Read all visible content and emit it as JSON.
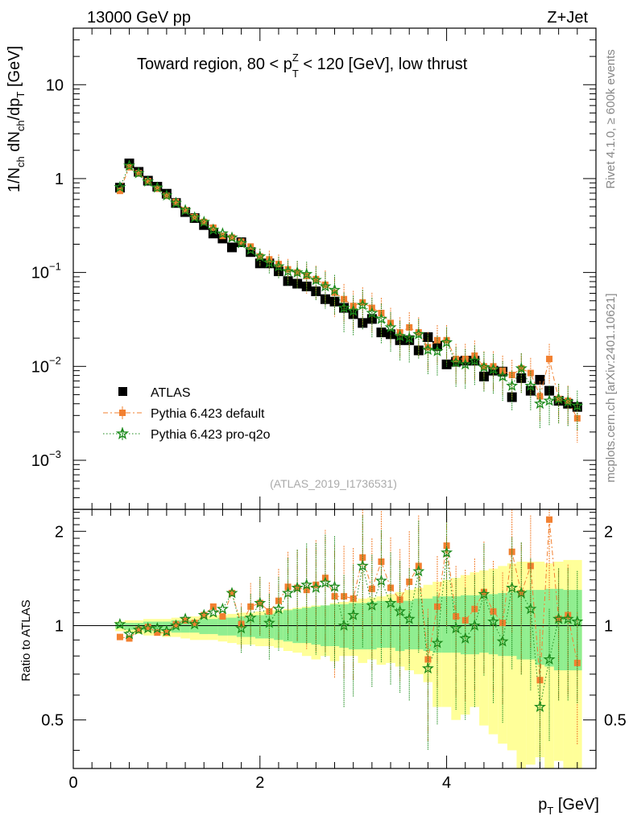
{
  "header": {
    "left": "13000 GeV pp",
    "right": "Z+Jet"
  },
  "side": {
    "rivet": "Rivet 4.1.0, ≥ 600k events",
    "mcplots": "mcplots.cern.ch [arXiv:2401.10621]"
  },
  "chart_data": [
    {
      "type": "scatter",
      "title": "Toward region, 80 < p_T^Z < 120 [GeV], low thrust",
      "title_parts": {
        "pre": "Toward region, 80 < p",
        "sup": "Z",
        "sub": "T",
        "post": " < 120 [GeV], low thrust"
      },
      "ylabel": "1/N_ch dN_ch/dp_T [GeV]",
      "yscale": "log",
      "ylim": [
        0.0003,
        40
      ],
      "xlim": [
        0,
        5.6
      ],
      "y_ticks": [
        {
          "value": 10,
          "label": "10"
        },
        {
          "value": 1,
          "label": "1"
        },
        {
          "value": 0.1,
          "base": "10",
          "exp": "−1"
        },
        {
          "value": 0.01,
          "base": "10",
          "exp": "−2"
        },
        {
          "value": 0.001,
          "base": "10",
          "exp": "−3"
        }
      ],
      "watermark": "(ATLAS_2019_I1736531)",
      "x": [
        0.5,
        0.6,
        0.7,
        0.8,
        0.9,
        1.0,
        1.1,
        1.2,
        1.3,
        1.4,
        1.5,
        1.6,
        1.7,
        1.8,
        1.9,
        2.0,
        2.1,
        2.2,
        2.3,
        2.4,
        2.5,
        2.6,
        2.7,
        2.8,
        2.9,
        3.0,
        3.1,
        3.2,
        3.3,
        3.4,
        3.5,
        3.6,
        3.7,
        3.8,
        3.9,
        4.0,
        4.1,
        4.2,
        4.3,
        4.4,
        4.5,
        4.6,
        4.7,
        4.8,
        4.9,
        5.0,
        5.1,
        5.2,
        5.3,
        5.4
      ],
      "series": [
        {
          "name": "ATLAS",
          "color": "#000000",
          "marker": "square",
          "values": [
            0.8,
            1.45,
            1.18,
            0.95,
            0.82,
            0.69,
            0.55,
            0.44,
            0.38,
            0.32,
            0.26,
            0.23,
            0.185,
            0.21,
            0.165,
            0.125,
            0.125,
            0.103,
            0.081,
            0.076,
            0.071,
            0.063,
            0.052,
            0.049,
            0.042,
            0.036,
            0.029,
            0.032,
            0.023,
            0.022,
            0.019,
            0.019,
            0.0148,
            0.0205,
            0.0165,
            0.0105,
            0.0112,
            0.0115,
            0.0115,
            0.0078,
            0.009,
            0.0088,
            0.0047,
            0.0075,
            0.0055,
            0.0072,
            0.0055,
            0.0043,
            0.004,
            0.0037
          ]
        },
        {
          "name": "Pythia 6.423 default",
          "color": "#f28030",
          "marker": "square-small",
          "values": [
            0.74,
            1.32,
            1.14,
            0.94,
            0.78,
            0.655,
            0.565,
            0.46,
            0.39,
            0.345,
            0.3,
            0.245,
            0.235,
            0.213,
            0.189,
            0.148,
            0.138,
            0.123,
            0.108,
            0.1,
            0.092,
            0.085,
            0.074,
            0.061,
            0.052,
            0.044,
            0.048,
            0.042,
            0.037,
            0.029,
            0.023,
            0.026,
            0.023,
            0.016,
            0.019,
            0.019,
            0.012,
            0.012,
            0.013,
            0.01,
            0.01,
            0.009,
            0.0081,
            0.0095,
            0.0085,
            0.0048,
            0.012,
            0.0045,
            0.0043,
            0.0028
          ]
        },
        {
          "name": "Pythia 6.423 pro-q2o",
          "color": "#1a8a1a",
          "marker": "star",
          "values": [
            0.81,
            1.37,
            1.14,
            0.93,
            0.8,
            0.66,
            0.55,
            0.46,
            0.385,
            0.345,
            0.285,
            0.26,
            0.235,
            0.205,
            0.175,
            0.148,
            0.127,
            0.116,
            0.103,
            0.1,
            0.096,
            0.083,
            0.071,
            0.065,
            0.042,
            0.039,
            0.045,
            0.037,
            0.032,
            0.026,
            0.021,
            0.02,
            0.022,
            0.015,
            0.0145,
            0.018,
            0.011,
            0.0105,
            0.0115,
            0.0098,
            0.0093,
            0.0078,
            0.0062,
            0.0095,
            0.0062,
            0.004,
            0.0043,
            0.0045,
            0.0042,
            0.0038
          ]
        }
      ],
      "legend": {
        "placement": "bottom-left",
        "entries": [
          "ATLAS",
          "Pythia 6.423 default",
          "Pythia 6.423 pro-q2o"
        ]
      }
    },
    {
      "type": "scatter",
      "ylabel": "Ratio to ATLAS",
      "xlabel": "p_T [GeV]",
      "xlabel_parts": {
        "pre": "p",
        "sub": "T",
        "post": " [GeV]"
      },
      "yscale": "log",
      "ylim": [
        0.35,
        2.35
      ],
      "xlim": [
        0,
        5.6
      ],
      "x_ticks": [
        {
          "value": 0,
          "label": "0"
        },
        {
          "value": 2,
          "label": "2"
        },
        {
          "value": 4,
          "label": "4"
        }
      ],
      "y_ticks": [
        {
          "value": 0.5,
          "label": "0.5"
        },
        {
          "value": 1,
          "label": "1"
        },
        {
          "value": 2,
          "label": "2"
        }
      ],
      "band_colors": {
        "inner": "#90ee90",
        "outer": "#ffff99"
      },
      "bands": {
        "outer_lo": [
          0.96,
          0.95,
          0.94,
          0.93,
          0.93,
          0.92,
          0.92,
          0.91,
          0.9,
          0.9,
          0.9,
          0.89,
          0.88,
          0.87,
          0.87,
          0.86,
          0.86,
          0.85,
          0.83,
          0.82,
          0.8,
          0.78,
          0.8,
          0.77,
          0.8,
          0.8,
          0.76,
          0.78,
          0.75,
          0.76,
          0.74,
          0.72,
          0.7,
          0.66,
          0.55,
          0.55,
          0.5,
          0.52,
          0.55,
          0.48,
          0.45,
          0.42,
          0.4,
          0.35,
          0.36,
          0.38,
          0.35,
          0.37,
          0.35,
          0.35
        ],
        "outer_hi": [
          1.03,
          1.04,
          1.04,
          1.05,
          1.05,
          1.05,
          1.06,
          1.06,
          1.07,
          1.08,
          1.08,
          1.08,
          1.09,
          1.1,
          1.1,
          1.11,
          1.12,
          1.12,
          1.13,
          1.14,
          1.15,
          1.16,
          1.16,
          1.18,
          1.19,
          1.2,
          1.22,
          1.23,
          1.24,
          1.26,
          1.28,
          1.3,
          1.32,
          1.35,
          1.38,
          1.4,
          1.42,
          1.45,
          1.48,
          1.5,
          1.52,
          1.55,
          1.58,
          1.6,
          1.6,
          1.6,
          1.58,
          1.6,
          1.62,
          1.62
        ],
        "inner_lo": [
          0.98,
          0.97,
          0.97,
          0.96,
          0.96,
          0.96,
          0.95,
          0.95,
          0.95,
          0.94,
          0.94,
          0.93,
          0.93,
          0.92,
          0.92,
          0.91,
          0.91,
          0.9,
          0.89,
          0.88,
          0.88,
          0.87,
          0.86,
          0.86,
          0.85,
          0.84,
          0.84,
          0.84,
          0.85,
          0.85,
          0.83,
          0.84,
          0.84,
          0.83,
          0.82,
          0.82,
          0.82,
          0.81,
          0.81,
          0.82,
          0.81,
          0.8,
          0.8,
          0.78,
          0.78,
          0.75,
          0.74,
          0.72,
          0.72,
          0.72
        ],
        "inner_hi": [
          1.02,
          1.02,
          1.02,
          1.03,
          1.03,
          1.03,
          1.04,
          1.04,
          1.04,
          1.05,
          1.05,
          1.06,
          1.06,
          1.07,
          1.07,
          1.08,
          1.09,
          1.1,
          1.12,
          1.13,
          1.14,
          1.15,
          1.16,
          1.17,
          1.17,
          1.18,
          1.18,
          1.19,
          1.2,
          1.2,
          1.2,
          1.2,
          1.22,
          1.22,
          1.24,
          1.24,
          1.24,
          1.25,
          1.25,
          1.26,
          1.26,
          1.27,
          1.28,
          1.29,
          1.3,
          1.3,
          1.31,
          1.31,
          1.3,
          1.3
        ]
      },
      "series": [
        {
          "name": "Pythia 6.423 default",
          "color": "#f28030",
          "values": [
            0.92,
            0.91,
            0.97,
            0.99,
            0.95,
            0.95,
            1.01,
            1.04,
            1.02,
            1.08,
            1.15,
            1.07,
            1.27,
            1.01,
            1.15,
            1.18,
            1.11,
            1.2,
            1.33,
            1.32,
            1.3,
            1.35,
            1.42,
            1.24,
            1.24,
            1.22,
            1.65,
            1.31,
            1.6,
            1.32,
            1.21,
            1.38,
            1.55,
            0.78,
            1.15,
            1.8,
            1.07,
            1.04,
            1.13,
            1.28,
            1.11,
            1.02,
            1.72,
            1.27,
            1.55,
            0.67,
            2.18,
            1.05,
            1.08,
            0.76
          ]
        },
        {
          "name": "Pythia 6.423 pro-q2o",
          "color": "#1a8a1a",
          "values": [
            1.01,
            0.94,
            0.97,
            0.98,
            0.98,
            0.96,
            1.0,
            1.05,
            1.01,
            1.08,
            1.1,
            1.13,
            1.27,
            0.98,
            1.06,
            1.18,
            1.02,
            1.13,
            1.27,
            1.32,
            1.35,
            1.32,
            1.37,
            1.33,
            1.0,
            1.08,
            1.55,
            1.16,
            1.39,
            1.18,
            1.11,
            1.05,
            1.49,
            0.73,
            0.88,
            1.71,
            0.98,
            0.91,
            1.0,
            1.26,
            1.03,
            0.89,
            1.32,
            1.27,
            1.13,
            0.55,
            0.78,
            1.05,
            1.05,
            1.03
          ]
        }
      ]
    }
  ]
}
